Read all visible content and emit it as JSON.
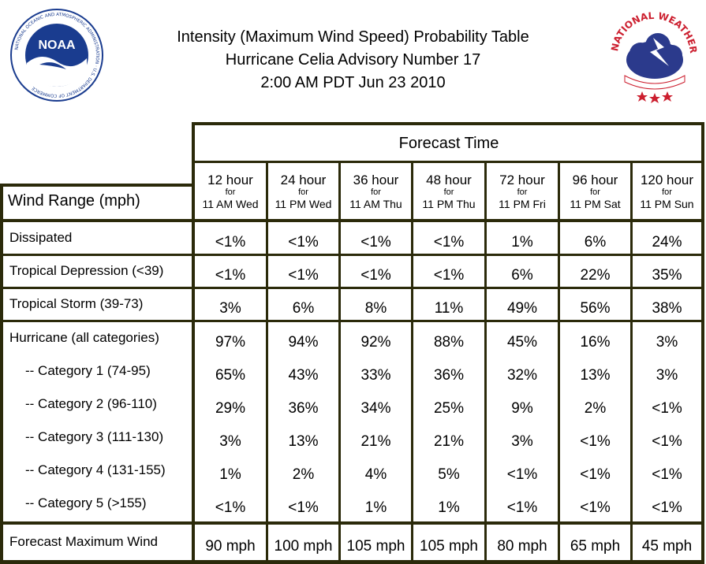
{
  "header": {
    "title_line1": "Intensity (Maximum Wind Speed) Probability Table",
    "title_line2": "Hurricane Celia Advisory Number 17",
    "title_line3": "2:00 AM PDT Jun 23 2010",
    "noaa_logo_text": "NOAA",
    "noaa_ring_text": "NATIONAL OCEANIC AND ATMOSPHERIC ADMINISTRATION · U.S. DEPARTMENT OF COMMERCE",
    "nws_ring_text": "NATIONAL WEATHER SERVICE"
  },
  "table": {
    "forecast_time_label": "Forecast Time",
    "wind_range_label": "Wind Range (mph)",
    "columns": [
      {
        "hours": "12 hour",
        "for": "for",
        "when": "11 AM Wed"
      },
      {
        "hours": "24 hour",
        "for": "for",
        "when": "11 PM Wed"
      },
      {
        "hours": "36 hour",
        "for": "for",
        "when": "11 AM Thu"
      },
      {
        "hours": "48 hour",
        "for": "for",
        "when": "11 PM Thu"
      },
      {
        "hours": "72 hour",
        "for": "for",
        "when": "11 PM Fri"
      },
      {
        "hours": "96 hour",
        "for": "for",
        "when": "11 PM Sat"
      },
      {
        "hours": "120 hour",
        "for": "for",
        "when": "11 PM Sun"
      }
    ],
    "rows": [
      {
        "label": "Dissipated",
        "values": [
          "<1%",
          "<1%",
          "<1%",
          "<1%",
          "1%",
          "6%",
          "24%"
        ]
      },
      {
        "label": "Tropical Depression (<39)",
        "values": [
          "<1%",
          "<1%",
          "<1%",
          "<1%",
          "6%",
          "22%",
          "35%"
        ]
      },
      {
        "label": "Tropical Storm (39-73)",
        "values": [
          "3%",
          "6%",
          "8%",
          "11%",
          "49%",
          "56%",
          "38%"
        ]
      },
      {
        "label": "Hurricane (all categories)",
        "values": [
          "97%",
          "94%",
          "92%",
          "88%",
          "45%",
          "16%",
          "3%"
        ]
      },
      {
        "label": "-- Category 1 (74-95)",
        "values": [
          "65%",
          "43%",
          "33%",
          "36%",
          "32%",
          "13%",
          "3%"
        ]
      },
      {
        "label": "-- Category 2 (96-110)",
        "values": [
          "29%",
          "36%",
          "34%",
          "25%",
          "9%",
          "2%",
          "<1%"
        ]
      },
      {
        "label": "-- Category 3 (111-130)",
        "values": [
          "3%",
          "13%",
          "21%",
          "21%",
          "3%",
          "<1%",
          "<1%"
        ]
      },
      {
        "label": "-- Category 4 (131-155)",
        "values": [
          "1%",
          "2%",
          "4%",
          "5%",
          "<1%",
          "<1%",
          "<1%"
        ]
      },
      {
        "label": "-- Category 5 (>155)",
        "values": [
          "<1%",
          "<1%",
          "1%",
          "1%",
          "<1%",
          "<1%",
          "<1%"
        ]
      }
    ],
    "forecast_max_wind": {
      "label": "Forecast Maximum Wind",
      "values": [
        "90 mph",
        "100 mph",
        "105 mph",
        "105 mph",
        "80 mph",
        "65 mph",
        "45 mph"
      ]
    }
  },
  "colors": {
    "border": "#2b2a0a",
    "noaa_blue": "#1a3c8f",
    "nws_red": "#cc1f2f",
    "nws_blue": "#2b3a8c"
  }
}
